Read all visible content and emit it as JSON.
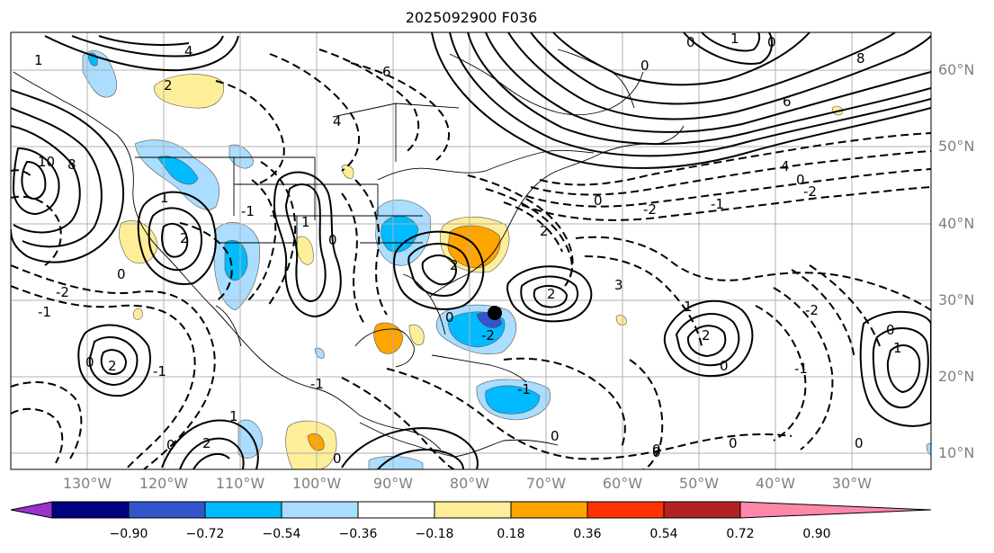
{
  "title": "2025092900 F036",
  "lat_labels": [
    "60°N",
    "50°N",
    "40°N",
    "30°N",
    "20°N",
    "10°N"
  ],
  "lon_labels": [
    "130°W",
    "120°W",
    "110°W",
    "100°W",
    "90°W",
    "80°W",
    "70°W",
    "60°W",
    "50°W",
    "40°W",
    "30°W"
  ],
  "colorbar": {
    "colors": [
      "#9933cc",
      "#000080",
      "#3355cc",
      "#00bbff",
      "#aaddff",
      "#ffffff",
      "#ffee99",
      "#ffa500",
      "#ff3300",
      "#b22222",
      "#ff88aa"
    ],
    "labels": [
      "−0.90",
      "−0.72",
      "−0.54",
      "−0.36",
      "−0.18",
      "0.18",
      "0.36",
      "0.54",
      "0.72",
      "0.90"
    ]
  },
  "contour_labels": {
    "zero": "0",
    "one": "1",
    "neg_one": "-1",
    "two": "2",
    "neg_two": "-2",
    "three": "3",
    "four": "4",
    "six": "6",
    "eight": "8",
    "ten": "10"
  },
  "marker": "storm-center-dot"
}
